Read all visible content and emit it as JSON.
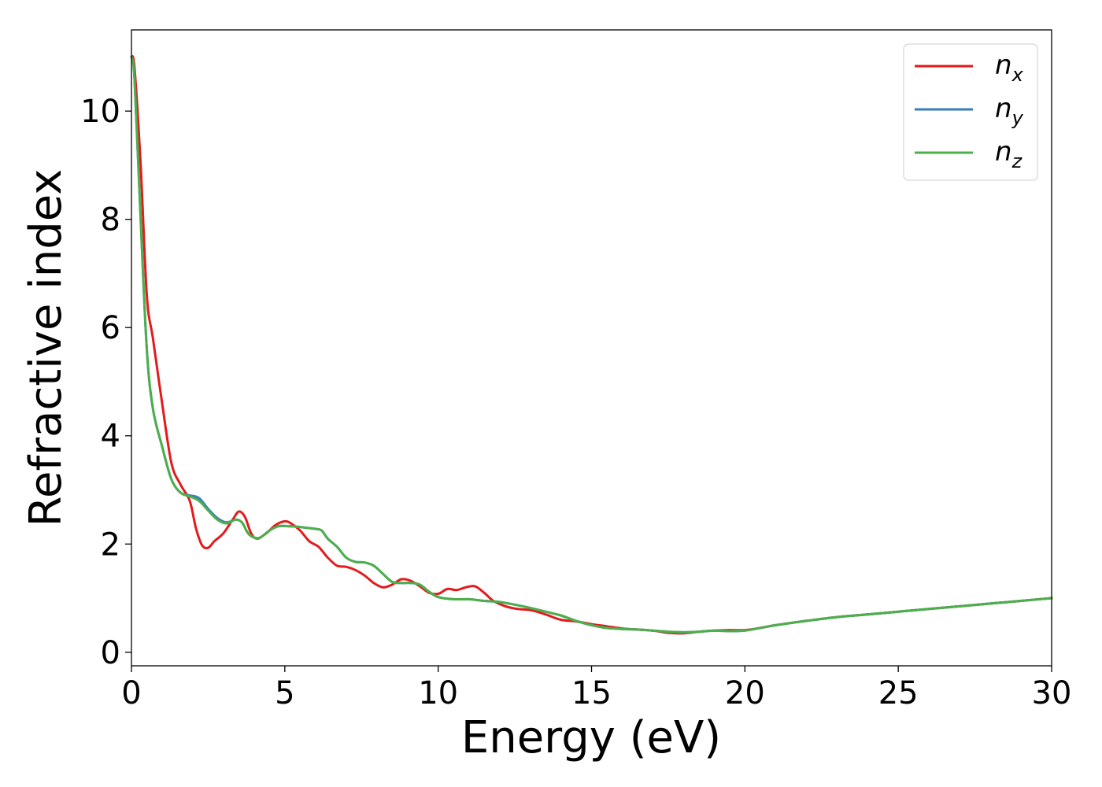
{
  "chart_data": {
    "type": "line",
    "title": "",
    "xlabel": "Energy (eV)",
    "ylabel": "Refractive index",
    "xlim": [
      0,
      30
    ],
    "ylim": [
      -0.25,
      11.5
    ],
    "xticks": [
      "0",
      "5",
      "10",
      "15",
      "20",
      "25",
      "30"
    ],
    "yticks": [
      "0",
      "2",
      "4",
      "6",
      "8",
      "10"
    ],
    "grid": false,
    "legend_position": "top-right",
    "series": [
      {
        "name": "n_x",
        "legend_main": "n",
        "legend_sub": "x",
        "color": "#e41a1c",
        "x": [
          0,
          0.1,
          0.3,
          0.5,
          0.7,
          1.0,
          1.3,
          1.6,
          1.9,
          2.1,
          2.3,
          2.5,
          2.7,
          3.0,
          3.3,
          3.5,
          3.7,
          3.9,
          4.1,
          4.4,
          4.7,
          5.0,
          5.2,
          5.5,
          5.8,
          6.1,
          6.4,
          6.7,
          7.0,
          7.3,
          7.6,
          7.9,
          8.2,
          8.5,
          8.8,
          9.1,
          9.4,
          9.7,
          10.0,
          10.3,
          10.6,
          10.9,
          11.2,
          11.5,
          11.8,
          12.2,
          12.6,
          13.0,
          13.5,
          14.0,
          14.5,
          15.0,
          15.5,
          16.0,
          16.5,
          17.0,
          17.5,
          18.0,
          18.5,
          19.0,
          19.5,
          20.0,
          20.5,
          21.0,
          22.0,
          23.0,
          24.0,
          25.0,
          26.0,
          27.0,
          28.0,
          29.0,
          30.0
        ],
        "y": [
          11.0,
          10.8,
          9.0,
          6.6,
          5.8,
          4.6,
          3.5,
          3.1,
          2.8,
          2.3,
          1.98,
          1.93,
          2.05,
          2.2,
          2.45,
          2.6,
          2.5,
          2.2,
          2.1,
          2.2,
          2.35,
          2.42,
          2.38,
          2.25,
          2.05,
          1.95,
          1.75,
          1.6,
          1.58,
          1.52,
          1.42,
          1.28,
          1.2,
          1.25,
          1.35,
          1.32,
          1.22,
          1.1,
          1.08,
          1.17,
          1.15,
          1.2,
          1.22,
          1.1,
          0.95,
          0.85,
          0.8,
          0.78,
          0.7,
          0.6,
          0.57,
          0.52,
          0.48,
          0.44,
          0.42,
          0.4,
          0.36,
          0.35,
          0.38,
          0.4,
          0.41,
          0.41,
          0.45,
          0.5,
          0.58,
          0.65,
          0.7,
          0.75,
          0.8,
          0.85,
          0.9,
          0.95,
          1.0
        ]
      },
      {
        "name": "n_y",
        "legend_main": "n",
        "legend_sub": "y",
        "color": "#377eb8",
        "x": [
          0,
          0.1,
          0.3,
          0.5,
          0.7,
          1.0,
          1.3,
          1.6,
          1.9,
          2.2,
          2.5,
          2.8,
          3.1,
          3.4,
          3.6,
          3.8,
          4.0,
          4.2,
          4.5,
          4.8,
          5.1,
          5.4,
          5.7,
          6.0,
          6.2,
          6.4,
          6.7,
          7.0,
          7.3,
          7.6,
          7.9,
          8.2,
          8.5,
          8.8,
          9.1,
          9.4,
          9.7,
          10.0,
          10.5,
          11.0,
          11.5,
          12.0,
          12.5,
          13.0,
          13.5,
          14.0,
          14.5,
          15.0,
          15.5,
          16.0,
          16.5,
          17.0,
          17.5,
          18.0,
          18.5,
          19.0,
          19.5,
          20.0,
          20.5,
          21.0,
          22.0,
          23.0,
          24.0,
          25.0,
          26.0,
          27.0,
          28.0,
          29.0,
          30.0
        ],
        "y": [
          11.0,
          10.6,
          8.0,
          5.6,
          4.5,
          3.8,
          3.2,
          2.95,
          2.9,
          2.85,
          2.65,
          2.48,
          2.4,
          2.45,
          2.4,
          2.2,
          2.12,
          2.12,
          2.25,
          2.33,
          2.33,
          2.32,
          2.3,
          2.28,
          2.25,
          2.1,
          1.95,
          1.75,
          1.67,
          1.66,
          1.6,
          1.45,
          1.3,
          1.28,
          1.28,
          1.25,
          1.12,
          1.02,
          0.98,
          0.98,
          0.95,
          0.93,
          0.88,
          0.82,
          0.75,
          0.68,
          0.58,
          0.5,
          0.45,
          0.43,
          0.42,
          0.4,
          0.38,
          0.37,
          0.38,
          0.4,
          0.39,
          0.4,
          0.45,
          0.5,
          0.58,
          0.65,
          0.7,
          0.75,
          0.8,
          0.85,
          0.9,
          0.95,
          1.0
        ]
      },
      {
        "name": "n_z",
        "legend_main": "n",
        "legend_sub": "z",
        "color": "#4daf4a",
        "x": [
          0,
          0.1,
          0.3,
          0.5,
          0.7,
          1.0,
          1.3,
          1.6,
          1.9,
          2.2,
          2.5,
          2.8,
          3.1,
          3.4,
          3.6,
          3.8,
          4.0,
          4.2,
          4.5,
          4.8,
          5.1,
          5.4,
          5.7,
          6.0,
          6.2,
          6.4,
          6.7,
          7.0,
          7.3,
          7.6,
          7.9,
          8.2,
          8.5,
          8.8,
          9.1,
          9.4,
          9.7,
          10.0,
          10.5,
          11.0,
          11.5,
          12.0,
          12.5,
          13.0,
          13.5,
          14.0,
          14.5,
          15.0,
          15.5,
          16.0,
          16.5,
          17.0,
          17.5,
          18.0,
          18.5,
          19.0,
          19.5,
          20.0,
          20.5,
          21.0,
          22.0,
          23.0,
          24.0,
          25.0,
          26.0,
          27.0,
          28.0,
          29.0,
          30.0
        ],
        "y": [
          11.0,
          10.6,
          8.0,
          5.6,
          4.5,
          3.8,
          3.2,
          2.95,
          2.88,
          2.8,
          2.62,
          2.45,
          2.38,
          2.45,
          2.4,
          2.2,
          2.12,
          2.12,
          2.25,
          2.33,
          2.33,
          2.32,
          2.3,
          2.28,
          2.25,
          2.1,
          1.95,
          1.75,
          1.67,
          1.66,
          1.6,
          1.45,
          1.3,
          1.28,
          1.28,
          1.25,
          1.12,
          1.02,
          0.98,
          0.98,
          0.95,
          0.93,
          0.88,
          0.82,
          0.75,
          0.68,
          0.58,
          0.5,
          0.45,
          0.43,
          0.42,
          0.4,
          0.38,
          0.37,
          0.38,
          0.4,
          0.39,
          0.4,
          0.45,
          0.5,
          0.58,
          0.65,
          0.7,
          0.75,
          0.8,
          0.85,
          0.9,
          0.95,
          1.0
        ]
      }
    ]
  }
}
